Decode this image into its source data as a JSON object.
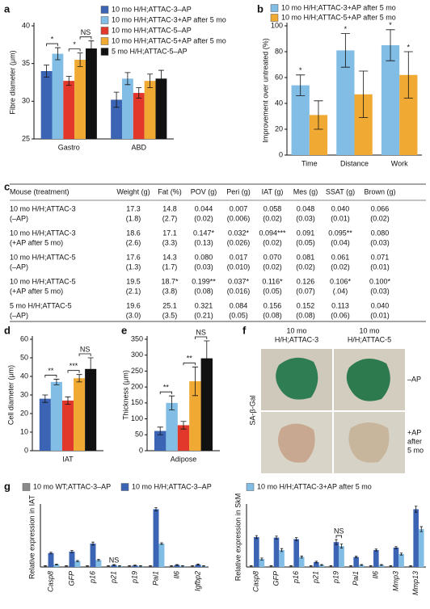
{
  "chart_data": [
    {
      "type": "bar",
      "panel": "a",
      "ylabel": "Fibre diameter (μm)",
      "categories": [
        "Gastro",
        "ABD"
      ],
      "ylim": [
        25,
        40
      ],
      "yticks": [
        25,
        30,
        35,
        40
      ],
      "legend": "top-right",
      "series": [
        {
          "name": "10 mo H/H;ATTAC-3–AP",
          "color": "#3b64b4",
          "values": [
            34.0,
            30.2
          ],
          "errors": [
            0.8,
            1.0
          ]
        },
        {
          "name": "10 mo H/H;ATTAC-3+AP after 5 mo",
          "color": "#82bde6",
          "values": [
            36.3,
            33.0
          ],
          "errors": [
            0.8,
            0.8
          ]
        },
        {
          "name": "10 mo H/H;ATTAC-5–AP",
          "color": "#e2382c",
          "values": [
            32.7,
            31.1
          ],
          "errors": [
            0.6,
            0.7
          ]
        },
        {
          "name": "10 mo H/H;ATTAC-5+AP after 5 mo",
          "color": "#f0aa34",
          "values": [
            35.5,
            32.7
          ],
          "errors": [
            0.9,
            0.9
          ]
        },
        {
          "name": "5 mo H/H;ATTAC-5–AP",
          "color": "#111111",
          "values": [
            37.0,
            33.0
          ],
          "errors": [
            1.0,
            1.1
          ]
        }
      ],
      "annotations": [
        {
          "text": "*",
          "category": 0,
          "series": [
            0,
            1
          ]
        },
        {
          "text": "*",
          "category": 0,
          "series": [
            2,
            3
          ]
        },
        {
          "text": "NS",
          "category": 0,
          "series": [
            3,
            4
          ]
        }
      ]
    },
    {
      "type": "bar",
      "panel": "b",
      "ylabel": "Improvement over untreated (%)",
      "categories": [
        "Time",
        "Distance",
        "Work"
      ],
      "ylim": [
        0,
        100
      ],
      "yticks": [
        0,
        20,
        40,
        60,
        80,
        100
      ],
      "legend": "top",
      "series": [
        {
          "name": "10 mo H/H;ATTAC-3+AP after 5 mo",
          "color": "#82bde6",
          "values": [
            54,
            81,
            85
          ],
          "errors": [
            8,
            13,
            12
          ]
        },
        {
          "name": "10 mo H/H;ATTAC-5+AP after 5 mo",
          "color": "#f0aa34",
          "values": [
            31,
            47,
            62
          ],
          "errors": [
            11,
            18,
            18
          ]
        }
      ],
      "annotations": [
        {
          "text": "*",
          "category": 0,
          "series": [
            0
          ]
        },
        {
          "text": "*",
          "category": 1,
          "series": [
            0
          ]
        },
        {
          "text": "*",
          "category": 2,
          "series": [
            0
          ]
        },
        {
          "text": "*",
          "category": 2,
          "series": [
            1
          ]
        }
      ]
    },
    {
      "type": "bar",
      "panel": "d",
      "ylabel": "Cell diameter (μm)",
      "categories": [
        "IAT"
      ],
      "ylim": [
        0,
        60
      ],
      "yticks": [
        0,
        10,
        20,
        30,
        40,
        50,
        60
      ],
      "series": [
        {
          "color": "#3b64b4",
          "values": [
            28
          ],
          "errors": [
            2
          ]
        },
        {
          "color": "#82bde6",
          "values": [
            37
          ],
          "errors": [
            1.5
          ]
        },
        {
          "color": "#e2382c",
          "values": [
            27
          ],
          "errors": [
            2
          ]
        },
        {
          "color": "#f0aa34",
          "values": [
            39
          ],
          "errors": [
            2
          ]
        },
        {
          "color": "#111111",
          "values": [
            44
          ],
          "errors": [
            6
          ]
        }
      ],
      "annotations": [
        {
          "text": "**",
          "category": 0,
          "series": [
            0,
            1
          ]
        },
        {
          "text": "***",
          "category": 0,
          "series": [
            2,
            3
          ]
        },
        {
          "text": "NS",
          "category": 0,
          "series": [
            3,
            4
          ]
        }
      ]
    },
    {
      "type": "bar",
      "panel": "e",
      "ylabel": "Thickness (μm)",
      "categories": [
        "Adipose"
      ],
      "ylim": [
        0,
        350
      ],
      "yticks": [
        0,
        50,
        100,
        150,
        200,
        250,
        300,
        350
      ],
      "series": [
        {
          "color": "#3b64b4",
          "values": [
            62
          ],
          "errors": [
            12
          ]
        },
        {
          "color": "#82bde6",
          "values": [
            150
          ],
          "errors": [
            22
          ]
        },
        {
          "color": "#e2382c",
          "values": [
            80
          ],
          "errors": [
            12
          ]
        },
        {
          "color": "#f0aa34",
          "values": [
            218
          ],
          "errors": [
            45
          ]
        },
        {
          "color": "#111111",
          "values": [
            290
          ],
          "errors": [
            55
          ]
        }
      ],
      "annotations": [
        {
          "text": "**",
          "category": 0,
          "series": [
            0,
            1
          ]
        },
        {
          "text": "**",
          "category": 0,
          "series": [
            2,
            3
          ]
        },
        {
          "text": "NS",
          "category": 0,
          "series": [
            3,
            4
          ]
        }
      ]
    },
    {
      "type": "bar",
      "panel": "g",
      "ylabel": "Relative expression in IAT",
      "xtick_style": "italic",
      "xtick_rotation": 90,
      "categories": [
        "Casp8",
        "GFP",
        "p16",
        "p21",
        "p19",
        "Pai1",
        "Il6",
        "Igfbp2"
      ],
      "ylim": [
        0,
        60
      ],
      "legend": "top",
      "series": [
        {
          "name": "10 mo WT;ATTAC-3–AP",
          "color": "#8a8a8a",
          "values": [
            1,
            1,
            1,
            1,
            1,
            1,
            1,
            1
          ],
          "errors": [
            0.3,
            0.3,
            0.3,
            0.3,
            0.3,
            0.3,
            0.3,
            0.3
          ]
        },
        {
          "name": "10 mo H/H;ATTAC-3–AP",
          "color": "#3b64b4",
          "values": [
            14,
            15.5,
            23.5,
            2,
            1.5,
            58,
            2,
            2.5
          ],
          "errors": [
            0.8,
            1,
            1.5,
            0.4,
            0.4,
            1.5,
            0.4,
            0.5
          ]
        },
        {
          "name": "10 mo H/H;ATTAC-3+AP after 5 mo",
          "color": "#82bde6",
          "values": [
            2.5,
            6,
            7,
            1,
            1,
            23.5,
            1,
            1
          ],
          "errors": [
            0.4,
            0.6,
            0.7,
            0.3,
            0.3,
            0.8,
            0.3,
            0.3
          ]
        }
      ],
      "annotations": [
        {
          "text": "NS",
          "category": 3,
          "series": [
            1
          ]
        }
      ]
    },
    {
      "type": "bar",
      "ylabel": "Relative expression in SkM",
      "xtick_style": "italic",
      "xtick_rotation": 90,
      "categories": [
        "Casp8",
        "GFP",
        "p16",
        "p21",
        "p19",
        "Pai1",
        "Il6",
        "Mmp3",
        "Mmp13"
      ],
      "ylim": [
        0,
        60
      ],
      "series": [
        {
          "color": "#8a8a8a",
          "values": [
            1,
            1,
            1,
            1,
            1,
            1,
            1,
            1,
            1
          ],
          "errors": [
            0.3,
            0.3,
            0.3,
            0.3,
            0.3,
            0.3,
            0.3,
            0.3,
            0.3
          ]
        },
        {
          "color": "#3b64b4",
          "values": [
            30,
            29.5,
            28,
            5,
            25,
            10,
            17,
            19.5,
            58
          ],
          "errors": [
            1.5,
            1.5,
            1.5,
            0.8,
            2.5,
            0.8,
            1,
            1,
            3
          ]
        },
        {
          "color": "#82bde6",
          "values": [
            8,
            17,
            10,
            2,
            21,
            2,
            2,
            13,
            38
          ],
          "errors": [
            1,
            1.5,
            1,
            0.5,
            2,
            0.5,
            0.5,
            1,
            2.5
          ]
        }
      ],
      "annotations": [
        {
          "text": "NS",
          "category": 4,
          "series": [
            1,
            2
          ]
        }
      ]
    }
  ],
  "table": {
    "panel": "c",
    "header": [
      "Mouse (treatment)",
      "Weight (g)",
      "Fat (%)",
      "POV (g)",
      "Peri (g)",
      "IAT (g)",
      "Mes (g)",
      "SSAT (g)",
      "Brown (g)"
    ],
    "rows": [
      [
        "10 mo H/H;ATTAC-3",
        "17.3",
        "14.8",
        "0.044",
        "0.007",
        "0.058",
        "0.048",
        "0.040",
        "0.066"
      ],
      [
        "(–AP)",
        "(1.8)",
        "(2.7)",
        "(0.02)",
        "(0.006)",
        "(0.02)",
        "(0.03)",
        "(0.01)",
        "(0.02)"
      ],
      [
        "10 mo H/H;ATTAC-3",
        "18.6",
        "17.1",
        "0.147*",
        "0.032*",
        "0.094***",
        "0.091",
        "0.095**",
        "0.080"
      ],
      [
        "(+AP after 5 mo)",
        "(2.6)",
        "(3.3)",
        "(0.13)",
        "(0.026)",
        "(0.02)",
        "(0.05)",
        "(0.04)",
        "(0.03)"
      ],
      [
        "10 mo H/H;ATTAC-5",
        "17.6",
        "14.3",
        "0.080",
        "0.017",
        "0.070",
        "0.081",
        "0.061",
        "0.071"
      ],
      [
        "(–AP)",
        "(1.3)",
        "(1.7)",
        "(0.03)",
        "(0.010)",
        "(0.02)",
        "(0.02)",
        "(0.02)",
        "(0.01)"
      ],
      [
        "10 mo H/H;ATTAC-5",
        "19.5",
        "18.7*",
        "0.199**",
        "0.037*",
        "0.116*",
        "0.126",
        "0.106*",
        "0.100*"
      ],
      [
        "(+AP after 5 mo)",
        "(2.1)",
        "(3.8)",
        "(0.08)",
        "(0.016)",
        "(0.05)",
        "(0.07)",
        "(.04)",
        "(0.03)"
      ],
      [
        "5 mo H/H;ATTAC-5",
        "19.6",
        "25.1",
        "0.321",
        "0.084",
        "0.156",
        "0.152",
        "0.113",
        "0.040"
      ],
      [
        "(–AP)",
        "(3.0)",
        "(3.5)",
        "(0.21)",
        "(0.05)",
        "(0.08)",
        "(0.08)",
        "(0.06)",
        "(0.01)"
      ]
    ]
  },
  "image_panel": {
    "panel": "f",
    "ylabel": "SA-β-Gal",
    "columns": [
      [
        "10 mo",
        "H/H;ATTAC-3"
      ],
      [
        "10 mo",
        "H/H;ATTAC-5"
      ]
    ],
    "rows": [
      [
        "–AP"
      ],
      [
        "+AP",
        "after",
        "5 mo"
      ]
    ]
  }
}
